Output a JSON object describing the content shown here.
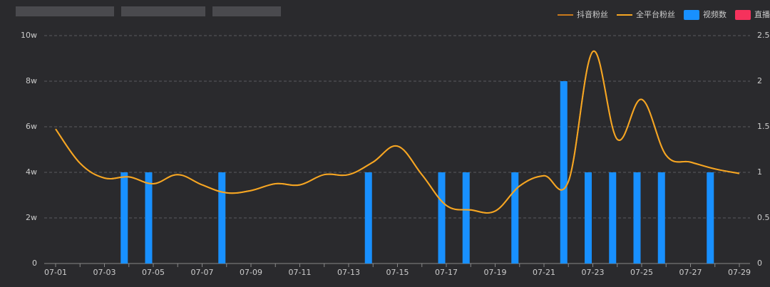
{
  "chart_data": {
    "type": "combo",
    "categories": [
      "07-01",
      null,
      "07-03",
      null,
      "07-05",
      null,
      "07-07",
      null,
      "07-09",
      null,
      "07-11",
      null,
      "07-13",
      null,
      "07-15",
      null,
      "07-17",
      null,
      "07-19",
      null,
      "07-21",
      null,
      "07-23",
      null,
      "07-25",
      null,
      "07-27",
      null,
      "07-29"
    ],
    "series": [
      {
        "name": "抖音粉丝",
        "type": "line",
        "color": "#c9791c",
        "values": [
          59000,
          44000,
          37500,
          38000,
          35000,
          39000,
          34500,
          31000,
          32000,
          35000,
          34500,
          39000,
          39000,
          44500,
          51500,
          39000,
          25500,
          23500,
          23000,
          34000,
          38500,
          36000,
          93000,
          54500,
          72000,
          47500,
          44500,
          41500,
          39500
        ]
      },
      {
        "name": "全平台粉丝",
        "type": "line",
        "color": "#f5a623",
        "values": [
          59000,
          44000,
          37500,
          38000,
          35000,
          39000,
          34500,
          31000,
          32000,
          35000,
          34500,
          39000,
          39000,
          44500,
          51500,
          39000,
          25500,
          23500,
          23000,
          34000,
          38500,
          36000,
          93000,
          54500,
          72000,
          47500,
          44500,
          41500,
          39500
        ]
      },
      {
        "name": "视频数",
        "type": "bar",
        "axis": "y2",
        "color": "#1890ff",
        "values": [
          0,
          0,
          0,
          1,
          1,
          0,
          0,
          1,
          0,
          0,
          0,
          0,
          0,
          1,
          0,
          0,
          1,
          1,
          0,
          1,
          0,
          2,
          1,
          1,
          1,
          1,
          0,
          1,
          0
        ]
      },
      {
        "name": "直播数",
        "type": "bar",
        "axis": "y2",
        "color": "#f5325c",
        "values": [
          0,
          0,
          0,
          0,
          0,
          0,
          0,
          0,
          0,
          0,
          0,
          0,
          0,
          0,
          0,
          0,
          0,
          0,
          0,
          0,
          0,
          0,
          0,
          0,
          0,
          0,
          0,
          0,
          0
        ]
      }
    ],
    "ylim": [
      0,
      100000
    ],
    "yticks": [
      0,
      {
        "value": 20000,
        "label": "2w"
      },
      {
        "value": 40000,
        "label": "4w"
      },
      {
        "value": 60000,
        "label": "6w"
      },
      {
        "value": 80000,
        "label": "8w"
      },
      {
        "value": 100000,
        "label": "10w"
      }
    ],
    "y2lim": [
      0,
      2.5
    ],
    "y2ticks": [
      0,
      0.5,
      1,
      1.5,
      2,
      2.5
    ],
    "grid": true
  }
}
